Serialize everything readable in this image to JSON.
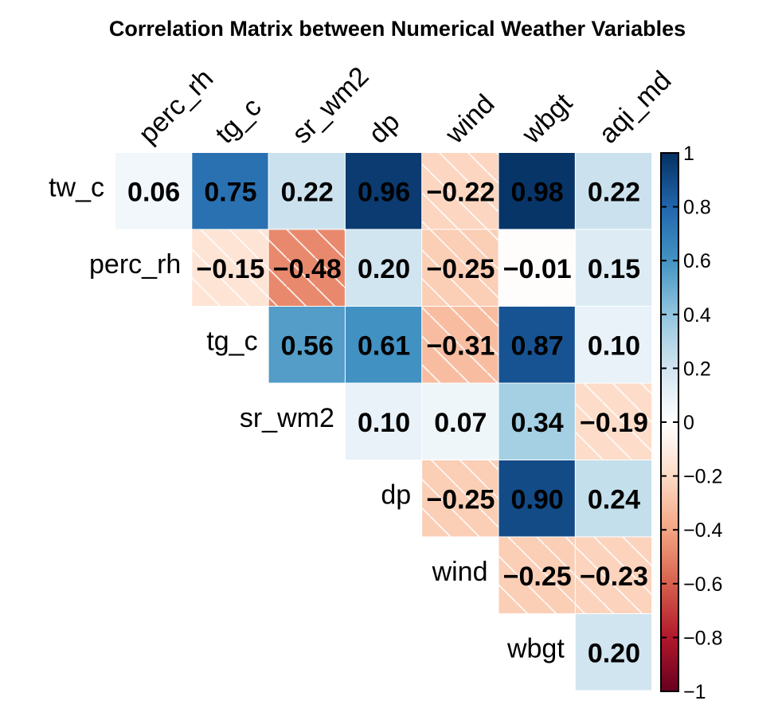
{
  "chart_data": {
    "type": "heatmap",
    "title": "Correlation Matrix between Numerical Weather Variables",
    "row_labels": [
      "tw_c",
      "perc_rh",
      "tg_c",
      "sr_wm2",
      "dp",
      "wind",
      "wbgt"
    ],
    "col_labels": [
      "perc_rh",
      "tg_c",
      "sr_wm2",
      "dp",
      "wind",
      "wbgt",
      "aqi_md"
    ],
    "matrix": [
      [
        0.06,
        0.75,
        0.22,
        0.96,
        -0.22,
        0.98,
        0.22
      ],
      [
        null,
        -0.15,
        -0.48,
        0.2,
        -0.25,
        -0.01,
        0.15
      ],
      [
        null,
        null,
        0.56,
        0.61,
        -0.31,
        0.87,
        0.1
      ],
      [
        null,
        null,
        null,
        0.1,
        0.07,
        0.34,
        -0.19
      ],
      [
        null,
        null,
        null,
        null,
        -0.25,
        0.9,
        0.24
      ],
      [
        null,
        null,
        null,
        null,
        null,
        -0.25,
        -0.23
      ],
      [
        null,
        null,
        null,
        null,
        null,
        null,
        0.2
      ]
    ],
    "value_labels": [
      [
        "0.06",
        "0.75",
        "0.22",
        "0.96",
        "−0.22",
        "0.98",
        "0.22"
      ],
      [
        "",
        "−0.15",
        "−0.48",
        "0.20",
        "−0.25",
        "−0.01",
        "0.15"
      ],
      [
        "",
        "",
        "0.56",
        "0.61",
        "−0.31",
        "0.87",
        "0.10"
      ],
      [
        "",
        "",
        "",
        "0.10",
        "0.07",
        "0.34",
        "−0.19"
      ],
      [
        "",
        "",
        "",
        "",
        "−0.25",
        "0.90",
        "0.24"
      ],
      [
        "",
        "",
        "",
        "",
        "",
        "−0.25",
        "−0.23"
      ],
      [
        "",
        "",
        "",
        "",
        "",
        "",
        "0.20"
      ]
    ],
    "colorbar": {
      "range": [
        -1,
        1
      ],
      "ticks": [
        1,
        0.8,
        0.6,
        0.4,
        0.2,
        0,
        -0.2,
        -0.4,
        -0.6,
        -0.8,
        -1
      ],
      "tick_labels": [
        "1",
        "0.8",
        "0.6",
        "0.4",
        "0.2",
        "0",
        "−0.2",
        "−0.4",
        "−0.6",
        "−0.8",
        "−1"
      ],
      "colors": [
        "#67001F",
        "#B2182B",
        "#D6604D",
        "#F4A582",
        "#FDDBC7",
        "#FFFFFF",
        "#D1E5F0",
        "#92C5DE",
        "#4393C3",
        "#2166AC",
        "#053061"
      ]
    },
    "negative_hatch": true
  }
}
